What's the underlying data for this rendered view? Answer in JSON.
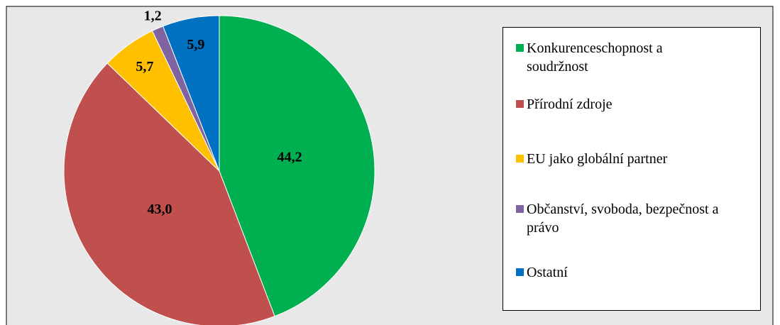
{
  "chart_data": {
    "type": "pie",
    "categories": [
      "Konkurenceschopnost a soudržnost",
      "Přírodní zdroje",
      "EU jako globální partner",
      "Občanství, svoboda, bezpečnost a právo",
      "Ostatní"
    ],
    "values": [
      44.2,
      43.0,
      5.7,
      1.2,
      5.9
    ],
    "value_labels": [
      "44,2",
      "43,0",
      "5,7",
      "1,2",
      "5,9"
    ],
    "colors": [
      "#00b050",
      "#c0504d",
      "#ffc000",
      "#8064a2",
      "#0070c0"
    ],
    "legend": "right"
  }
}
